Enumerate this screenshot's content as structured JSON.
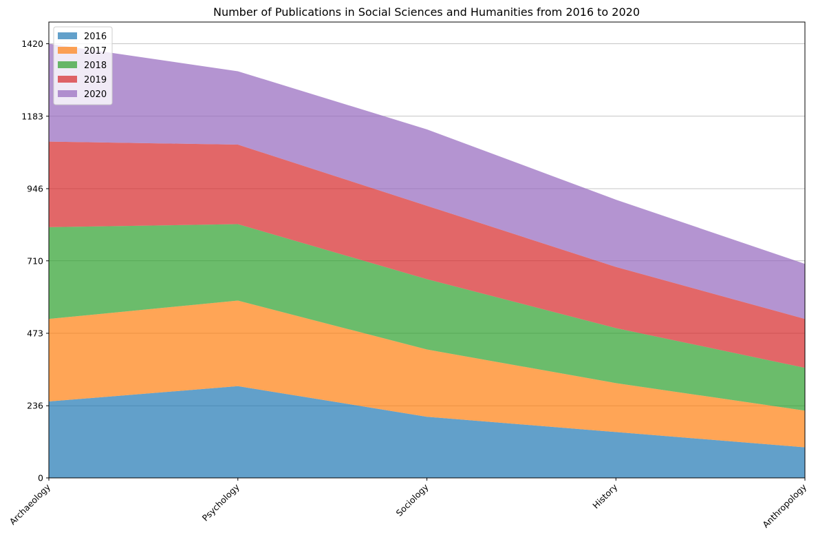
{
  "chart_data": {
    "type": "area",
    "stacked": true,
    "title": "Number of Publications in Social Sciences and Humanities from 2016 to 2020",
    "xlabel": "",
    "ylabel": "",
    "categories": [
      "Archaeology",
      "Psychology",
      "Sociology",
      "History",
      "Anthropology"
    ],
    "series": [
      {
        "name": "2016",
        "color": "#1f77b4",
        "values": [
          250,
          300,
          200,
          150,
          100
        ]
      },
      {
        "name": "2017",
        "color": "#ff7f0e",
        "values": [
          270,
          280,
          220,
          160,
          120
        ]
      },
      {
        "name": "2018",
        "color": "#2ca02c",
        "values": [
          300,
          250,
          230,
          180,
          140
        ]
      },
      {
        "name": "2019",
        "color": "#d62728",
        "values": [
          280,
          260,
          240,
          200,
          160
        ]
      },
      {
        "name": "2020",
        "color": "#9467bd",
        "values": [
          320,
          240,
          250,
          220,
          180
        ]
      }
    ],
    "yticks": [
      0,
      236,
      473,
      710,
      946,
      1183,
      1420
    ],
    "ylim": [
      0,
      1491
    ],
    "grid": "horizontal",
    "legend_position": "top-left",
    "opacity": 0.7
  }
}
